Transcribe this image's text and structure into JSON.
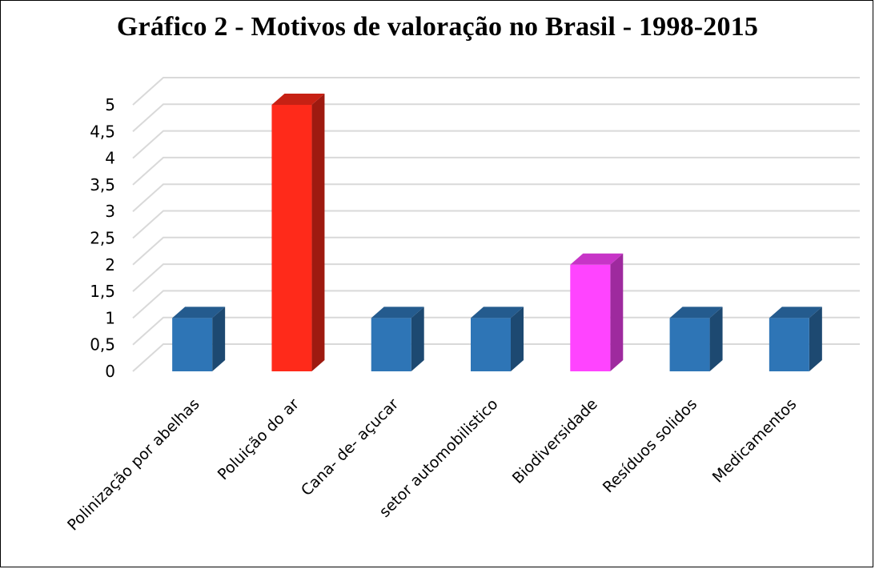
{
  "chart_data": {
    "type": "bar",
    "style": "3d-column",
    "title": "Gráfico 2 - Motivos de valoração no Brasil - 1998-2015",
    "xlabel": "",
    "ylabel": "",
    "ylim": [
      0,
      5
    ],
    "y_ticks": [
      {
        "value": 0,
        "label": "0"
      },
      {
        "value": 0.5,
        "label": "0,5"
      },
      {
        "value": 1,
        "label": "1"
      },
      {
        "value": 1.5,
        "label": "1,5"
      },
      {
        "value": 2,
        "label": "2"
      },
      {
        "value": 2.5,
        "label": "2,5"
      },
      {
        "value": 3,
        "label": "3"
      },
      {
        "value": 3.5,
        "label": "3,5"
      },
      {
        "value": 4,
        "label": "4"
      },
      {
        "value": 4.5,
        "label": "4,5"
      },
      {
        "value": 5,
        "label": "5"
      }
    ],
    "grid": true,
    "legend": "none",
    "categories": [
      "Polinização por abelhas",
      "Poluição do ar",
      "Cana- de- açucar",
      "setor automobilistico",
      "Biodiversidade",
      "Resíduos solidos",
      "Medicamentos"
    ],
    "values": [
      1,
      5,
      1,
      1,
      2,
      1,
      1
    ],
    "bar_colors": [
      "#2e75b6",
      "#ff2a1a",
      "#2e75b6",
      "#2e75b6",
      "#ff44ff",
      "#2e75b6",
      "#2e75b6"
    ]
  }
}
